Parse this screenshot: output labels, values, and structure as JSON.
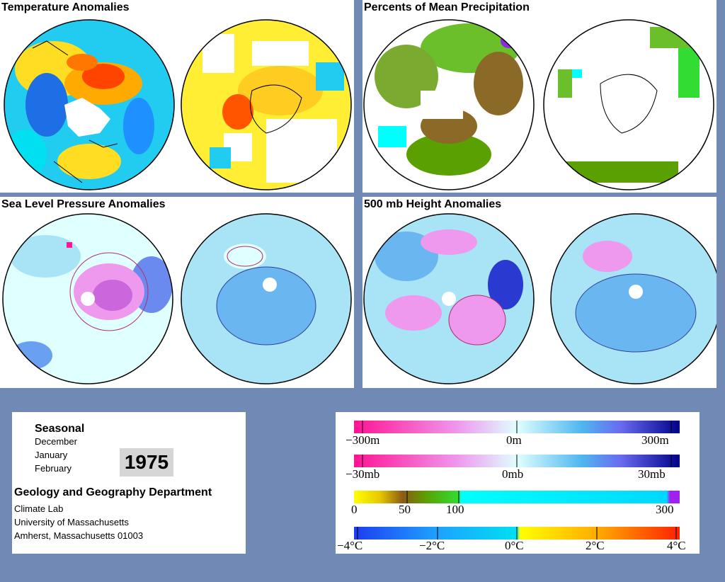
{
  "panels": {
    "temperature": {
      "title": "Temperature Anomalies"
    },
    "precipitation": {
      "title": "Percents of Mean Precipitation"
    },
    "pressure": {
      "title": "Sea Level Pressure Anomalies"
    },
    "height": {
      "title": "500 mb Height Anomalies"
    }
  },
  "info": {
    "period_type": "Seasonal",
    "months": [
      "December",
      "January",
      "February"
    ],
    "year": "1975",
    "department": "Geology and Geography Department",
    "lines": [
      "Climate Lab",
      "University of Massachusetts",
      "Amherst, Massachusetts 01003"
    ]
  },
  "legends": {
    "height": {
      "labels": [
        "−300m",
        "0m",
        "300m"
      ]
    },
    "pressure": {
      "labels": [
        "−30mb",
        "0mb",
        "30mb"
      ]
    },
    "precip": {
      "labels": [
        "0",
        "50",
        "100",
        "300"
      ]
    },
    "temperature": {
      "labels": [
        "−4°C",
        "−2°C",
        "0°C",
        "2°C",
        "4°C"
      ]
    }
  },
  "colors": {
    "background": "#7189b5",
    "negative_scale_end": "#ff1493",
    "positive_scale_end": "#00008b",
    "neutral": "#e0ffff",
    "warm": "#ff3300",
    "cold": "#0000aa"
  }
}
